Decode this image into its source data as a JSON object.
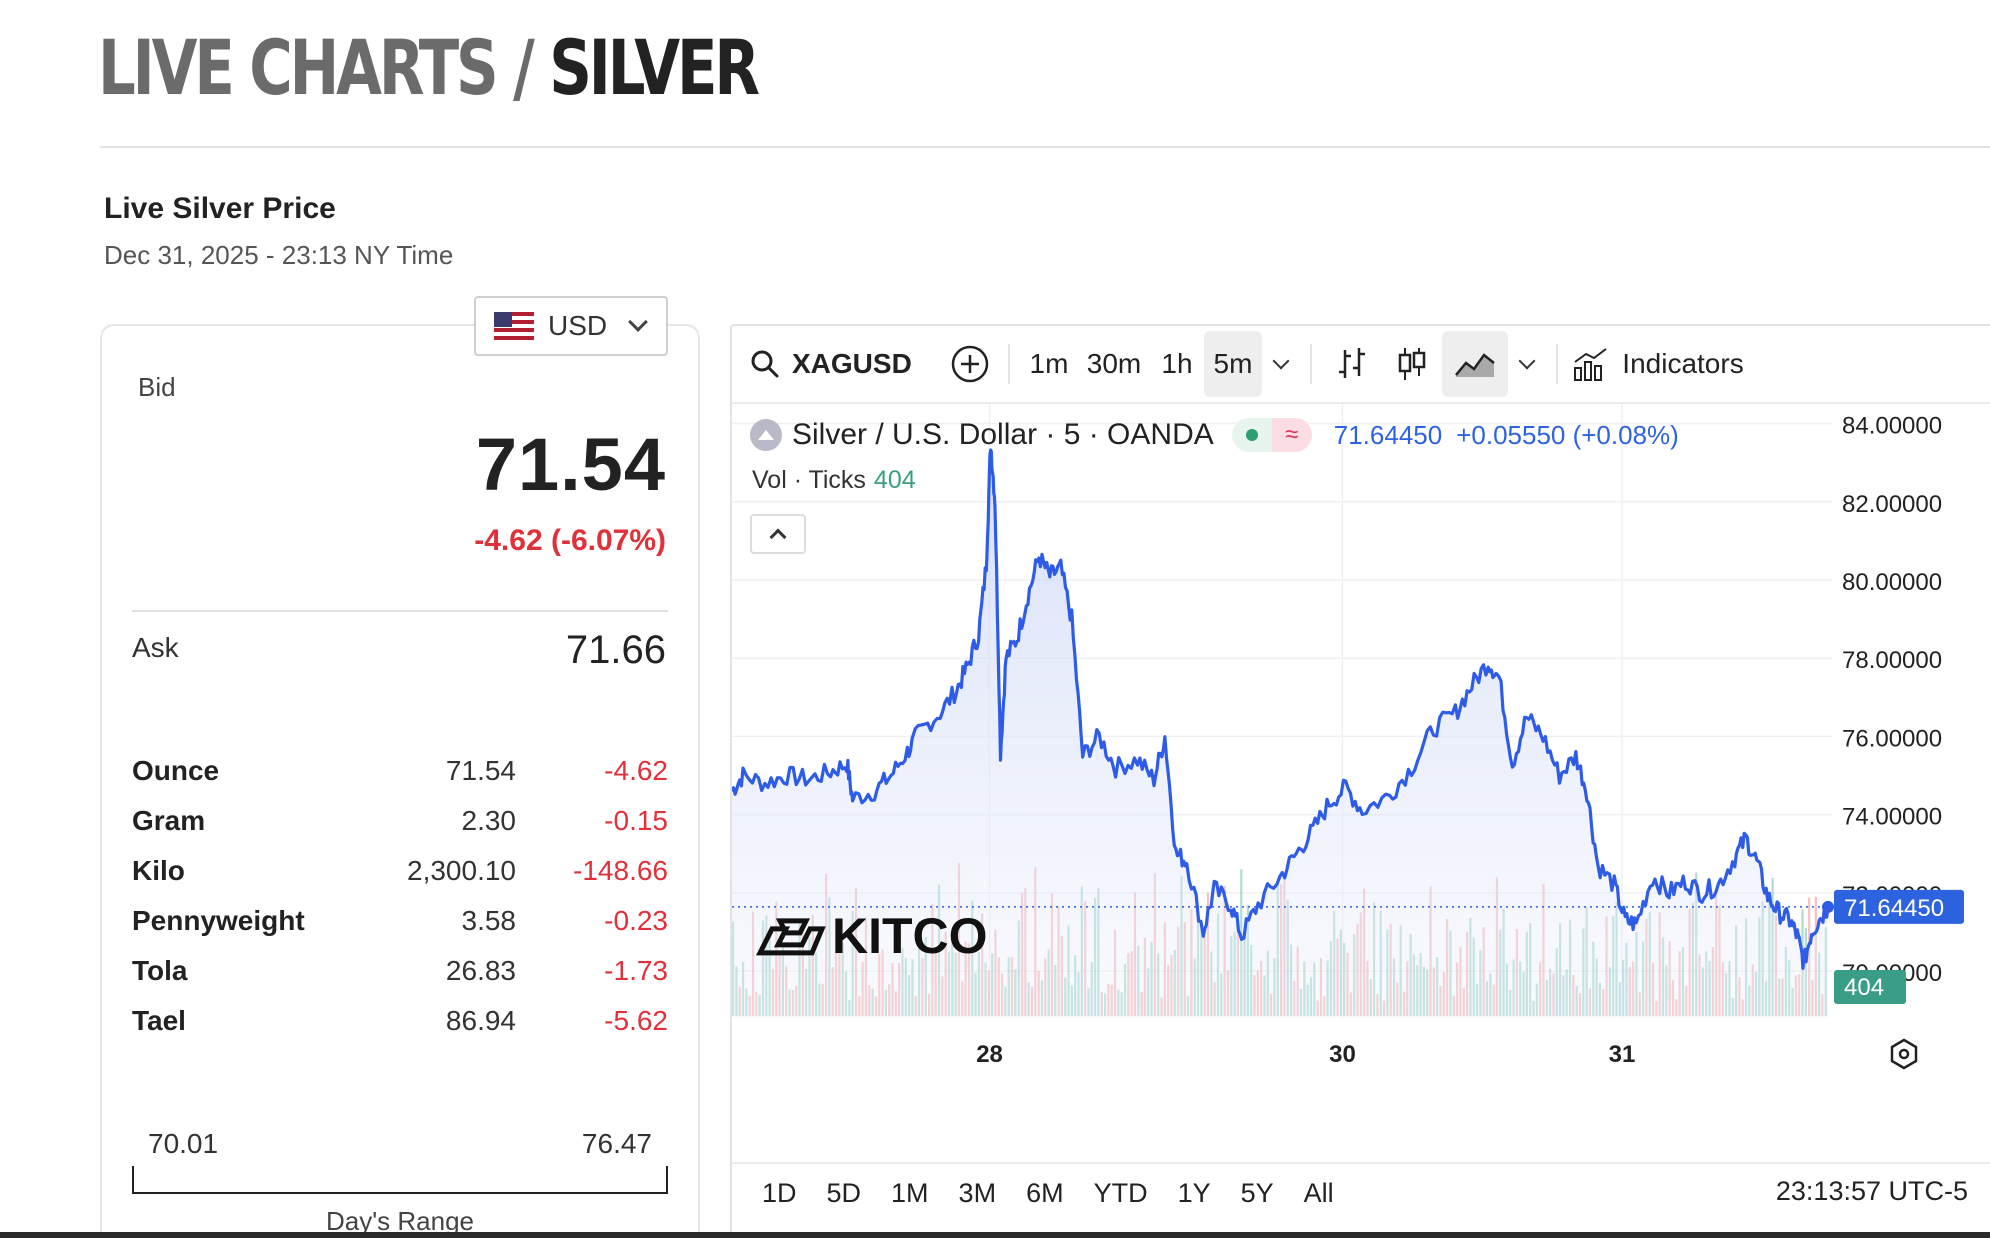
{
  "page": {
    "title_part1": "LIVE CHARTS /",
    "title_part2": "SILVER",
    "subtitle": "Live Silver Price",
    "date": "Dec 31, 2025 - 23:13 NY Time"
  },
  "currency": {
    "selected": "USD",
    "flag": "us-flag-icon"
  },
  "quote": {
    "bid_label": "Bid",
    "bid": "71.54",
    "change": "-4.62 (-6.07%)",
    "ask_label": "Ask",
    "ask": "71.66",
    "negative_color": "#e0303a"
  },
  "units": [
    {
      "name": "Ounce",
      "price": "71.54",
      "change": "-4.62"
    },
    {
      "name": "Gram",
      "price": "2.30",
      "change": "-0.15"
    },
    {
      "name": "Kilo",
      "price": "2,300.10",
      "change": "-148.66"
    },
    {
      "name": "Pennyweight",
      "price": "3.58",
      "change": "-0.23"
    },
    {
      "name": "Tola",
      "price": "26.83",
      "change": "-1.73"
    },
    {
      "name": "Tael",
      "price": "86.94",
      "change": "-5.62"
    }
  ],
  "day_range": {
    "low": "70.01",
    "high": "76.47",
    "label": "Day's Range"
  },
  "toolbar": {
    "symbol": "XAGUSD",
    "intervals": [
      "1m",
      "30m",
      "1h",
      "5m"
    ],
    "active_interval": "5m",
    "indicators_label": "Indicators"
  },
  "legend": {
    "title": "Silver / U.S. Dollar · 5 · OANDA",
    "last": "71.64450",
    "change": "+0.05550 (+0.08%)",
    "vol_label": "Vol · Ticks",
    "vol_value": "404"
  },
  "watermark": "KITCO",
  "ranges": [
    "1D",
    "5D",
    "1M",
    "3M",
    "6M",
    "YTD",
    "1Y",
    "5Y",
    "All"
  ],
  "clock": "23:13:57 UTC-5",
  "colors": {
    "line": "#2e5ce6",
    "accent_blue": "#2e63e0",
    "vol_up": "#6fbfae",
    "vol_down": "#ef8e8e"
  },
  "chart_data": {
    "type": "area",
    "x_ticks": [
      "28",
      "30",
      "31"
    ],
    "x_tick_positions": [
      0.235,
      0.557,
      0.812
    ],
    "y_ticks": [
      "84.00000",
      "82.00000",
      "80.00000",
      "78.00000",
      "76.00000",
      "74.00000",
      "72.00000",
      "70.00000"
    ],
    "ylim": [
      68.8,
      84.5
    ],
    "last_price_label": "71.64450",
    "volume_label": "404",
    "price_series": [
      [
        0.0,
        74.6
      ],
      [
        0.01,
        75.0
      ],
      [
        0.03,
        74.8
      ],
      [
        0.05,
        75.0
      ],
      [
        0.07,
        74.9
      ],
      [
        0.09,
        75.1
      ],
      [
        0.105,
        75.3
      ],
      [
        0.11,
        74.4
      ],
      [
        0.13,
        74.6
      ],
      [
        0.145,
        75.0
      ],
      [
        0.16,
        75.6
      ],
      [
        0.17,
        76.1
      ],
      [
        0.19,
        76.6
      ],
      [
        0.205,
        77.2
      ],
      [
        0.215,
        77.8
      ],
      [
        0.225,
        78.6
      ],
      [
        0.232,
        80.4
      ],
      [
        0.236,
        83.5
      ],
      [
        0.24,
        82.0
      ],
      [
        0.245,
        75.6
      ],
      [
        0.25,
        78.0
      ],
      [
        0.26,
        78.5
      ],
      [
        0.27,
        79.6
      ],
      [
        0.28,
        80.6
      ],
      [
        0.29,
        80.1
      ],
      [
        0.3,
        80.3
      ],
      [
        0.31,
        79.0
      ],
      [
        0.32,
        75.5
      ],
      [
        0.335,
        76.0
      ],
      [
        0.35,
        75.2
      ],
      [
        0.37,
        75.4
      ],
      [
        0.385,
        74.9
      ],
      [
        0.395,
        76.0
      ],
      [
        0.405,
        73.0
      ],
      [
        0.415,
        72.8
      ],
      [
        0.43,
        71.0
      ],
      [
        0.44,
        72.1
      ],
      [
        0.455,
        71.7
      ],
      [
        0.465,
        70.9
      ],
      [
        0.48,
        71.7
      ],
      [
        0.5,
        72.4
      ],
      [
        0.515,
        73.0
      ],
      [
        0.53,
        73.6
      ],
      [
        0.545,
        74.3
      ],
      [
        0.56,
        74.7
      ],
      [
        0.575,
        74.1
      ],
      [
        0.6,
        74.5
      ],
      [
        0.62,
        75.2
      ],
      [
        0.64,
        76.2
      ],
      [
        0.66,
        76.6
      ],
      [
        0.675,
        77.3
      ],
      [
        0.69,
        77.9
      ],
      [
        0.7,
        77.5
      ],
      [
        0.712,
        75.3
      ],
      [
        0.725,
        76.5
      ],
      [
        0.74,
        76.0
      ],
      [
        0.755,
        75.0
      ],
      [
        0.77,
        75.5
      ],
      [
        0.78,
        74.6
      ],
      [
        0.79,
        72.7
      ],
      [
        0.805,
        72.2
      ],
      [
        0.815,
        71.3
      ],
      [
        0.825,
        71.2
      ],
      [
        0.84,
        72.4
      ],
      [
        0.855,
        72.0
      ],
      [
        0.87,
        72.3
      ],
      [
        0.885,
        72.0
      ],
      [
        0.9,
        72.2
      ],
      [
        0.915,
        72.9
      ],
      [
        0.925,
        73.4
      ],
      [
        0.935,
        72.8
      ],
      [
        0.945,
        71.9
      ],
      [
        0.955,
        71.5
      ],
      [
        0.965,
        71.3
      ],
      [
        0.972,
        70.9
      ],
      [
        0.978,
        70.2
      ],
      [
        0.985,
        71.0
      ],
      [
        0.992,
        71.3
      ],
      [
        1.0,
        71.64
      ]
    ]
  }
}
